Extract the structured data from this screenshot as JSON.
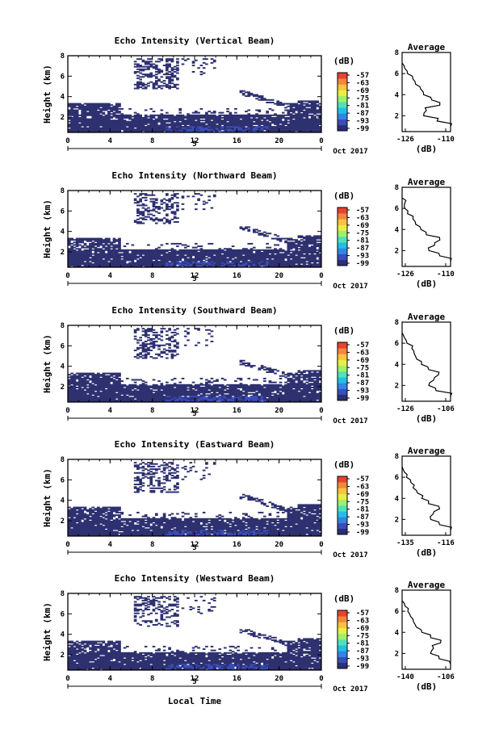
{
  "x_label": "Local Time",
  "date_label": "Oct 2017",
  "day_label": "5",
  "colorbar": {
    "unit": "(dB)",
    "ticks": [
      "-57",
      "-63",
      "-69",
      "-75",
      "-81",
      "-87",
      "-93",
      "-99"
    ],
    "colors": [
      "#2b2e77",
      "#3a4dbb",
      "#2f86e6",
      "#1fc0e8",
      "#4de3b6",
      "#9ef06a",
      "#e8ef40",
      "#f9c33a",
      "#f6863a",
      "#ea4230"
    ]
  },
  "chart_data": [
    {
      "type": "heatmap",
      "title": "Echo Intensity (Vertical Beam)",
      "xlabel": "",
      "ylabel": "Height (km)",
      "x_ticks": [
        "0",
        "4",
        "8",
        "12",
        "16",
        "20",
        "0"
      ],
      "y_ticks": [
        "2",
        "4",
        "6",
        "8"
      ],
      "ylim": [
        0.5,
        8
      ],
      "profile": {
        "title": "Average",
        "xlabel": "(dB)",
        "x_ticks": [
          "-126",
          "-110"
        ],
        "xlim": [
          -126,
          -108
        ],
        "height": [
          1.0,
          1.5,
          2.0,
          2.5,
          3.0,
          3.5,
          4.0,
          4.5,
          5.0,
          5.5,
          6.0,
          6.5,
          7.0
        ],
        "db": [
          -108,
          -113,
          -118,
          -117,
          -112,
          -115,
          -118,
          -119,
          -121,
          -122,
          -124,
          -125,
          -126
        ]
      }
    },
    {
      "type": "heatmap",
      "title": "Echo Intensity (Northward Beam)",
      "xlabel": "",
      "ylabel": "Height (km)",
      "x_ticks": [
        "0",
        "4",
        "8",
        "12",
        "16",
        "20",
        "0"
      ],
      "y_ticks": [
        "2",
        "4",
        "6",
        "8"
      ],
      "ylim": [
        0.5,
        8
      ],
      "profile": {
        "title": "Average",
        "xlabel": "(dB)",
        "x_ticks": [
          "-126",
          "-110"
        ],
        "xlim": [
          -126,
          -108
        ],
        "height": [
          1.0,
          1.5,
          2.0,
          2.5,
          3.0,
          3.5,
          4.0,
          4.5,
          5.0,
          5.5,
          6.0,
          6.5,
          7.0
        ],
        "db": [
          -108,
          -112,
          -116,
          -114,
          -112,
          -117,
          -119,
          -121,
          -122,
          -124,
          -125,
          -125,
          -126
        ]
      }
    },
    {
      "type": "heatmap",
      "title": "Echo Intensity (Southward Beam)",
      "xlabel": "",
      "ylabel": "Height (km)",
      "x_ticks": [
        "0",
        "4",
        "8",
        "12",
        "16",
        "20",
        "0"
      ],
      "y_ticks": [
        "2",
        "4",
        "6",
        "8"
      ],
      "ylim": [
        0.5,
        8
      ],
      "profile": {
        "title": "Average",
        "xlabel": "(dB)",
        "x_ticks": [
          "-126",
          "-106"
        ],
        "xlim": [
          -126,
          -106
        ],
        "height": [
          1.0,
          1.5,
          2.0,
          2.5,
          3.0,
          3.5,
          4.0,
          4.5,
          5.0,
          5.5,
          6.0,
          6.5,
          7.0
        ],
        "db": [
          -106,
          -112,
          -115,
          -113,
          -111,
          -115,
          -118,
          -120,
          -121,
          -122,
          -124,
          -125,
          -126
        ]
      }
    },
    {
      "type": "heatmap",
      "title": "Echo Intensity (Eastward Beam)",
      "xlabel": "",
      "ylabel": "Height (km)",
      "x_ticks": [
        "0",
        "4",
        "8",
        "12",
        "16",
        "20",
        "0"
      ],
      "y_ticks": [
        "2",
        "4",
        "6",
        "8"
      ],
      "ylim": [
        0.5,
        8
      ],
      "profile": {
        "title": "Average",
        "xlabel": "(dB)",
        "x_ticks": [
          "-135",
          "-116"
        ],
        "xlim": [
          -135,
          -113
        ],
        "height": [
          1.0,
          1.5,
          2.0,
          2.5,
          3.0,
          3.5,
          4.0,
          4.5,
          5.0,
          5.5,
          6.0,
          6.5,
          7.0
        ],
        "db": [
          -113,
          -118,
          -122,
          -121,
          -118,
          -123,
          -126,
          -128,
          -130,
          -131,
          -133,
          -134,
          -135
        ]
      }
    },
    {
      "type": "heatmap",
      "title": "Echo Intensity (Westward Beam)",
      "xlabel": "Local Time",
      "ylabel": "Height (km)",
      "x_ticks": [
        "0",
        "4",
        "8",
        "12",
        "16",
        "20",
        "0"
      ],
      "y_ticks": [
        "2",
        "4",
        "6",
        "8"
      ],
      "ylim": [
        0.5,
        8
      ],
      "profile": {
        "title": "Average",
        "xlabel": "(dB)",
        "x_ticks": [
          "-140",
          "-106"
        ],
        "xlim": [
          -140,
          -106
        ],
        "height": [
          1.0,
          1.5,
          2.0,
          2.5,
          3.0,
          3.5,
          4.0,
          4.5,
          5.0,
          5.5,
          6.0,
          6.5,
          7.0
        ],
        "db": [
          -106,
          -114,
          -120,
          -118,
          -113,
          -120,
          -126,
          -130,
          -132,
          -134,
          -136,
          -138,
          -140
        ]
      }
    }
  ]
}
